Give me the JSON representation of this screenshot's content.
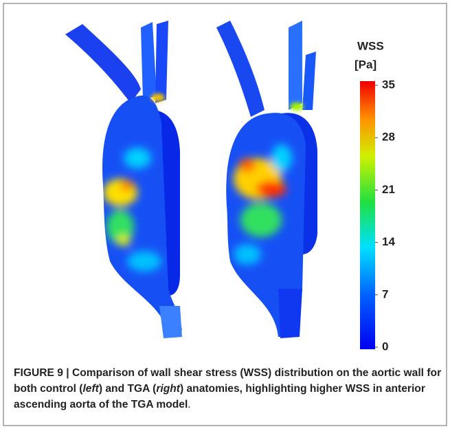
{
  "figure": {
    "colorbar": {
      "title": "WSS",
      "unit": "[Pa]",
      "lim": [
        0,
        35
      ],
      "ticks": [
        0,
        7,
        14,
        21,
        28,
        35
      ]
    },
    "caption": [
      "FIGURE 9 | Comparison of wall shear stress (WSS) distribution on the aortic wall for both control (",
      "left",
      ") and TGA (",
      "right",
      ") anatomies, highlighting higher WSS in anterior ascending aorta of the TGA model",
      "."
    ]
  }
}
